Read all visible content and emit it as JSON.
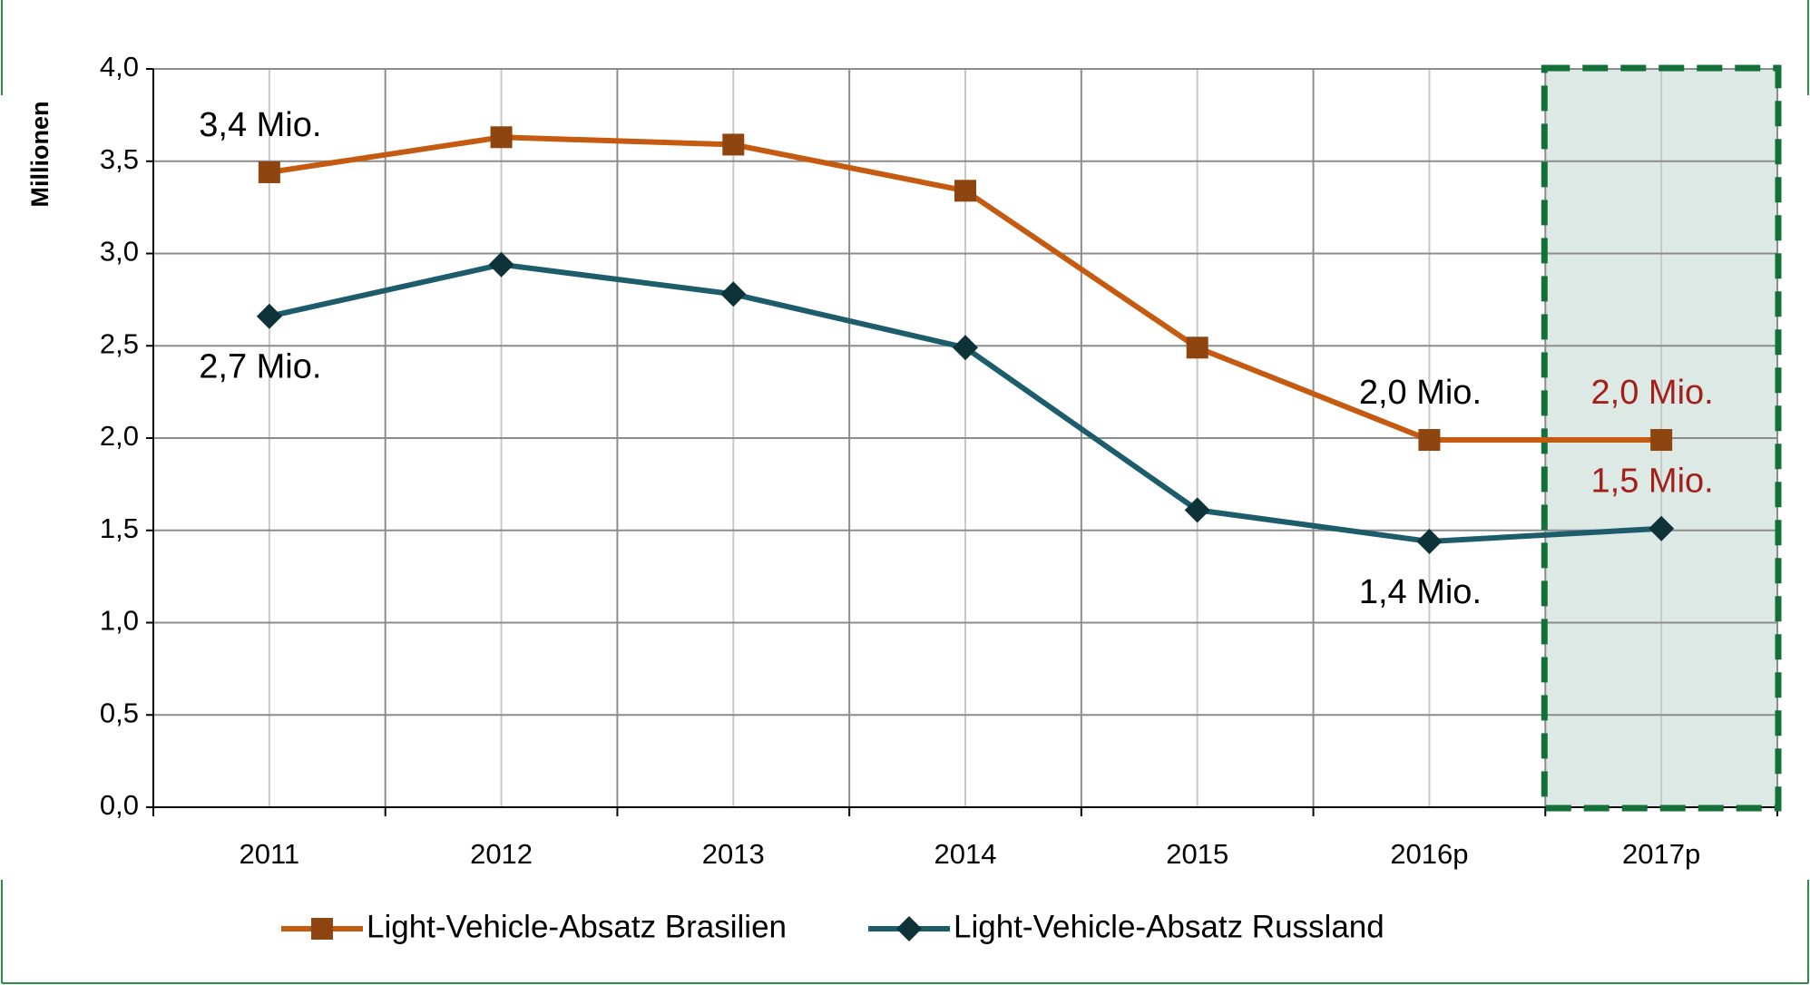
{
  "chart_data": {
    "type": "line",
    "y_label": "Millionen",
    "categories": [
      "2011",
      "2012",
      "2013",
      "2014",
      "2015",
      "2016p",
      "2017p"
    ],
    "series": [
      {
        "name": "Light-Vehicle-Absatz Brasilien",
        "color": "#c55a11",
        "marker": "square",
        "marker_color": "#8f4510",
        "values": [
          3.44,
          3.63,
          3.59,
          3.34,
          2.49,
          1.99,
          1.99
        ],
        "value_labels": [
          "3,4 Mio.",
          null,
          null,
          null,
          null,
          "2,0 Mio.",
          "2,0 Mio."
        ],
        "value_label_positions": [
          "above",
          null,
          null,
          null,
          null,
          "above",
          "above"
        ],
        "value_label_colors": [
          "#000000",
          null,
          null,
          null,
          null,
          "#000000",
          "#a31f1a"
        ]
      },
      {
        "name": "Light-Vehicle-Absatz Russland",
        "color": "#1c5c6b",
        "marker": "diamond",
        "marker_color": "#0d3338",
        "values": [
          2.66,
          2.94,
          2.78,
          2.49,
          1.61,
          1.44,
          1.51
        ],
        "value_labels": [
          "2,7 Mio.",
          null,
          null,
          null,
          null,
          "1,4 Mio.",
          "1,5 Mio."
        ],
        "value_label_positions": [
          "below",
          null,
          null,
          null,
          null,
          "below",
          "above"
        ],
        "value_label_colors": [
          "#000000",
          null,
          null,
          null,
          null,
          "#000000",
          "#a31f1a"
        ]
      }
    ],
    "ylim": [
      0,
      4
    ],
    "yticks": [
      {
        "value": 0,
        "label": "0,0"
      },
      {
        "value": 0.5,
        "label": "0,5"
      },
      {
        "value": 1,
        "label": "1,0"
      },
      {
        "value": 1.5,
        "label": "1,5"
      },
      {
        "value": 2,
        "label": "2,0"
      },
      {
        "value": 2.5,
        "label": "2,5"
      },
      {
        "value": 3,
        "label": "3,0"
      },
      {
        "value": 3.5,
        "label": "3,5"
      },
      {
        "value": 4,
        "label": "4,0"
      }
    ],
    "grid": true,
    "legend": "bottom",
    "highlight": {
      "index": 6,
      "fill": "#dde9e4",
      "border": "#127038"
    }
  }
}
